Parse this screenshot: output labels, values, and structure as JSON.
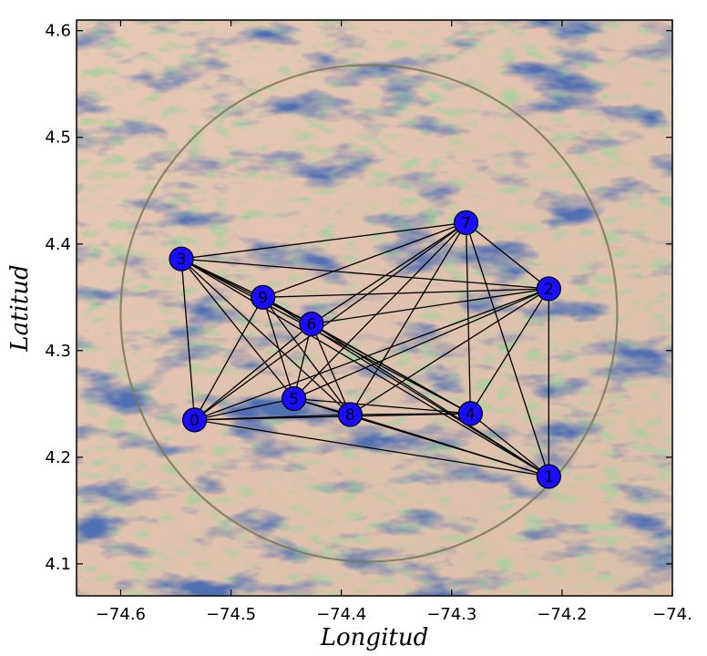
{
  "chart_data": {
    "type": "scatter",
    "title": "",
    "xlabel": "Longitud",
    "ylabel": "Latitud",
    "xlim": [
      -74.64,
      -74.1
    ],
    "ylim": [
      4.07,
      4.61
    ],
    "x_ticks": [
      -74.6,
      -74.5,
      -74.4,
      -74.3,
      -74.2,
      -74.1
    ],
    "x_tick_labels": [
      "−74.6",
      "−74.5",
      "−74.4",
      "−74.3",
      "−74.2",
      "−74."
    ],
    "y_ticks": [
      4.1,
      4.2,
      4.3,
      4.4,
      4.5,
      4.6
    ],
    "y_tick_labels": [
      "4.1",
      "4.2",
      "4.3",
      "4.4",
      "4.5",
      "4.6"
    ],
    "background": "shaded-relief terrain map",
    "circle": {
      "center": [
        -74.375,
        4.335
      ],
      "radius": 0.225
    },
    "node_color": "#1a0dff",
    "edge_color": "#000000",
    "nodes": [
      {
        "id": "0",
        "x": -74.533,
        "y": 4.235
      },
      {
        "id": "1",
        "x": -74.212,
        "y": 4.182
      },
      {
        "id": "2",
        "x": -74.212,
        "y": 4.358
      },
      {
        "id": "3",
        "x": -74.545,
        "y": 4.386
      },
      {
        "id": "4",
        "x": -74.283,
        "y": 4.241
      },
      {
        "id": "5",
        "x": -74.443,
        "y": 4.255
      },
      {
        "id": "6",
        "x": -74.427,
        "y": 4.325
      },
      {
        "id": "7",
        "x": -74.287,
        "y": 4.42
      },
      {
        "id": "8",
        "x": -74.392,
        "y": 4.24
      },
      {
        "id": "9",
        "x": -74.471,
        "y": 4.35
      }
    ],
    "edges": [
      [
        "3",
        "7"
      ],
      [
        "3",
        "2"
      ],
      [
        "3",
        "9"
      ],
      [
        "3",
        "6"
      ],
      [
        "3",
        "4"
      ],
      [
        "3",
        "1"
      ],
      [
        "3",
        "0"
      ],
      [
        "3",
        "5"
      ],
      [
        "3",
        "8"
      ],
      [
        "9",
        "7"
      ],
      [
        "9",
        "2"
      ],
      [
        "9",
        "6"
      ],
      [
        "9",
        "5"
      ],
      [
        "9",
        "8"
      ],
      [
        "9",
        "4"
      ],
      [
        "9",
        "0"
      ],
      [
        "9",
        "1"
      ],
      [
        "6",
        "7"
      ],
      [
        "6",
        "2"
      ],
      [
        "6",
        "5"
      ],
      [
        "6",
        "8"
      ],
      [
        "6",
        "4"
      ],
      [
        "6",
        "1"
      ],
      [
        "6",
        "0"
      ],
      [
        "7",
        "2"
      ],
      [
        "7",
        "4"
      ],
      [
        "7",
        "1"
      ],
      [
        "7",
        "8"
      ],
      [
        "7",
        "5"
      ],
      [
        "7",
        "0"
      ],
      [
        "2",
        "4"
      ],
      [
        "2",
        "1"
      ],
      [
        "2",
        "0"
      ],
      [
        "2",
        "5"
      ],
      [
        "2",
        "8"
      ],
      [
        "0",
        "5"
      ],
      [
        "0",
        "8"
      ],
      [
        "0",
        "4"
      ],
      [
        "0",
        "1"
      ],
      [
        "5",
        "8"
      ],
      [
        "5",
        "4"
      ],
      [
        "5",
        "1"
      ],
      [
        "8",
        "4"
      ],
      [
        "8",
        "1"
      ],
      [
        "4",
        "1"
      ]
    ]
  }
}
